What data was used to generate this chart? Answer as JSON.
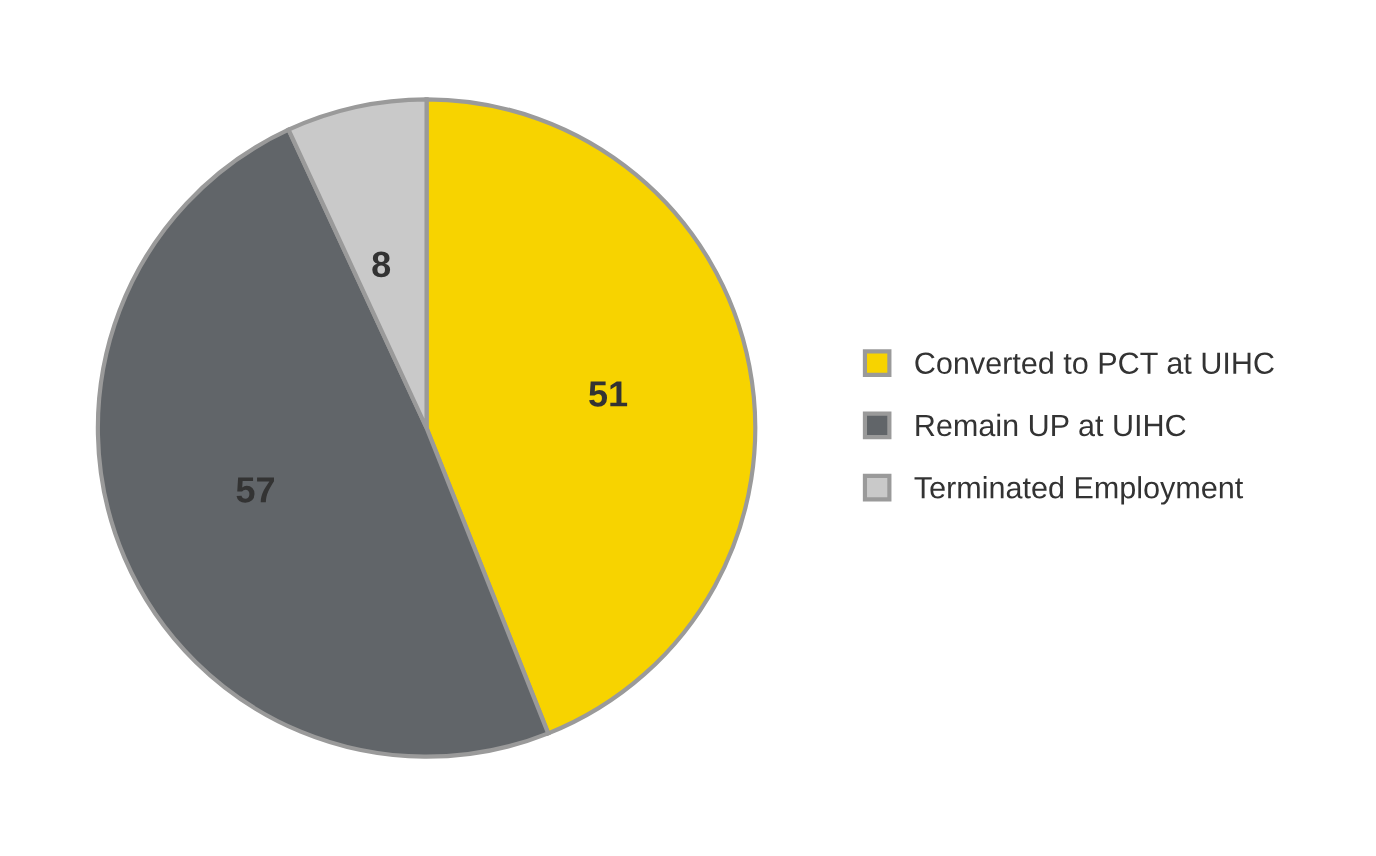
{
  "chart_data": {
    "type": "pie",
    "categories": [
      "Converted to PCT at UIHC",
      "Remain UP at UIHC",
      "Terminated Employment"
    ],
    "values": [
      51,
      57,
      8
    ],
    "colors": [
      "#f7d300",
      "#616569",
      "#c9c9c9"
    ],
    "data_labels": true,
    "legend": "right"
  }
}
